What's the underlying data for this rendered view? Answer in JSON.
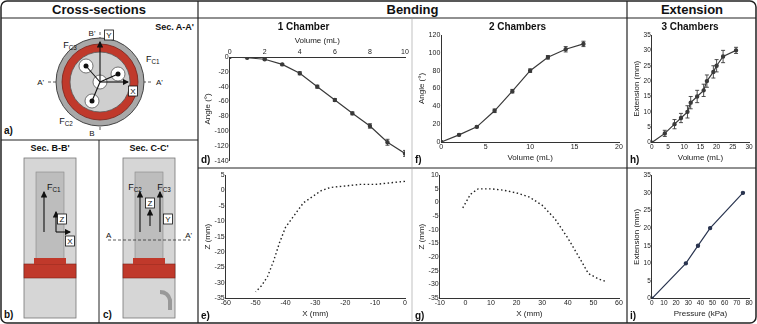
{
  "headers": [
    "Cross-sections",
    "Bending",
    "Extension"
  ],
  "cross_sections": [
    {
      "panel": "a)",
      "title": "Sec. A-A'",
      "forces": [
        "FC1",
        "FC2",
        "FC3"
      ],
      "axes": [
        "X",
        "Y"
      ],
      "section_marks": [
        "A'",
        "A'",
        "B'",
        "B"
      ]
    },
    {
      "panel": "b)",
      "title": "Sec. B-B'",
      "forces": [
        "FC1"
      ],
      "axes": [
        "Z",
        "X"
      ]
    },
    {
      "panel": "c)",
      "title": "Sec. C-C'",
      "forces": [
        "FC2",
        "FC3"
      ],
      "axes": [
        "Z",
        "Y"
      ],
      "section_marks": [
        "A",
        "A'"
      ]
    }
  ],
  "chart_data": [
    {
      "panel": "d)",
      "type": "line",
      "title": "1 Chamber",
      "x_label": "Volume (mL)",
      "y_label": "Angle (°)",
      "x": [
        0,
        1,
        2,
        3,
        4,
        5,
        6,
        7,
        8,
        9,
        10
      ],
      "values": [
        0,
        -1,
        -3,
        -10,
        -22,
        -40,
        -58,
        -76,
        -93,
        -115,
        -130
      ],
      "errors": [
        0,
        0,
        1,
        1,
        2,
        2,
        2,
        2,
        3,
        4,
        4
      ],
      "color": "#3a3a3a",
      "marker": "circle",
      "line_style": "solid",
      "xlim": [
        0,
        10
      ],
      "xticks": [
        0,
        2,
        4,
        6,
        8,
        10
      ],
      "ylim": [
        -140,
        0
      ],
      "yticks": [
        -140,
        -120,
        -100,
        -80,
        -60,
        -40,
        -20,
        0
      ],
      "grid": false
    },
    {
      "panel": "e)",
      "type": "line",
      "x_label": "X (mm)",
      "y_label": "Z (mm)",
      "x": [
        0,
        -5,
        -10,
        -15,
        -20,
        -25,
        -28,
        -31,
        -34,
        -37,
        -40,
        -42,
        -44,
        -46,
        -48,
        -50
      ],
      "values": [
        3,
        2.5,
        2,
        2,
        1.5,
        1,
        0,
        -2,
        -4,
        -8,
        -12,
        -17,
        -23,
        -28,
        -31,
        -33
      ],
      "color": "#222222",
      "marker": "none",
      "line_style": "dotted",
      "xlim": [
        -60,
        0
      ],
      "xticks": [
        -60,
        -50,
        -40,
        -30,
        -20,
        -10,
        0
      ],
      "ylim": [
        -35,
        5
      ],
      "yticks": [
        -35,
        -30,
        -25,
        -20,
        -15,
        -10,
        -5,
        0,
        5
      ],
      "grid": false
    },
    {
      "panel": "f)",
      "type": "line",
      "title": "2 Chambers",
      "x_label": "Volume (mL)",
      "y_label": "Angle (°)",
      "x": [
        0,
        2,
        4,
        6,
        8,
        10,
        12,
        14,
        16
      ],
      "values": [
        0,
        8,
        17,
        35,
        57,
        80,
        95,
        104,
        110
      ],
      "errors": [
        0,
        1,
        1,
        2,
        2,
        2,
        2,
        3,
        3
      ],
      "color": "#3a3a3a",
      "marker": "circle",
      "line_style": "solid",
      "xlim": [
        0,
        20
      ],
      "xticks": [
        0,
        5,
        10,
        15,
        20
      ],
      "ylim": [
        0,
        120
      ],
      "yticks": [
        0,
        20,
        40,
        60,
        80,
        100,
        120
      ],
      "grid": false
    },
    {
      "panel": "g)",
      "type": "line",
      "x_label": "X (mm)",
      "y_label": "Z (mm)",
      "x": [
        -1,
        2,
        5,
        10,
        15,
        20,
        25,
        30,
        35,
        40,
        45,
        48,
        52,
        55
      ],
      "values": [
        -2,
        3,
        5,
        5,
        4.5,
        3.5,
        2,
        -1,
        -6,
        -13,
        -21,
        -26,
        -28,
        -29
      ],
      "color": "#222222",
      "marker": "none",
      "line_style": "dotted",
      "xlim": [
        -10,
        60
      ],
      "xticks": [
        -10,
        0,
        10,
        20,
        30,
        40,
        50,
        60
      ],
      "ylim": [
        -35,
        10
      ],
      "yticks": [
        -35,
        -30,
        -25,
        -20,
        -15,
        -10,
        -5,
        0,
        5,
        10
      ],
      "grid": false
    },
    {
      "panel": "h)",
      "type": "line",
      "title": "3 Chambers",
      "x_label": "Volume (mL)",
      "y_label": "Extension (mm)",
      "x": [
        0,
        4,
        7,
        9,
        11,
        12,
        14,
        16,
        17,
        19,
        20,
        22,
        26
      ],
      "values": [
        0,
        3,
        6,
        8,
        10,
        13,
        15,
        17,
        20,
        23,
        25,
        28,
        30
      ],
      "errors": [
        0,
        1,
        1.5,
        1.5,
        2,
        2,
        2,
        2,
        2,
        2,
        2,
        2,
        1
      ],
      "color": "#3a3a3a",
      "marker": "circle",
      "line_style": "solid",
      "xlim": [
        0,
        30
      ],
      "xticks": [
        0,
        5,
        10,
        15,
        20,
        25,
        30
      ],
      "ylim": [
        0,
        35
      ],
      "yticks": [
        0,
        5,
        10,
        15,
        20,
        25,
        30,
        35
      ],
      "grid": false
    },
    {
      "panel": "i)",
      "type": "line",
      "x_label": "Pressure (kPa)",
      "y_label": "Extension (mm)",
      "x": [
        0,
        28,
        38,
        48,
        75
      ],
      "values": [
        0,
        10,
        15,
        20,
        30
      ],
      "color": "#2a3550",
      "marker": "circle",
      "line_style": "solid",
      "xlim": [
        0,
        80
      ],
      "xticks": [
        0,
        10,
        20,
        30,
        40,
        50,
        60,
        70,
        80
      ],
      "ylim": [
        0,
        35
      ],
      "yticks": [
        0,
        5,
        10,
        15,
        20,
        25,
        30,
        35
      ],
      "grid": false
    }
  ]
}
